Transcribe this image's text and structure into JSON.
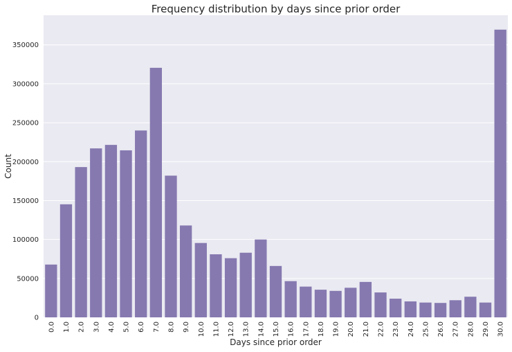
{
  "chart_data": {
    "type": "bar",
    "title": "Frequency distribution by days since prior order",
    "xlabel": "Days since prior order",
    "ylabel": "Count",
    "categories": [
      "0.0",
      "1.0",
      "2.0",
      "3.0",
      "4.0",
      "5.0",
      "6.0",
      "7.0",
      "8.0",
      "9.0",
      "10.0",
      "11.0",
      "12.0",
      "13.0",
      "14.0",
      "15.0",
      "16.0",
      "17.0",
      "18.0",
      "19.0",
      "20.0",
      "21.0",
      "22.0",
      "23.0",
      "24.0",
      "25.0",
      "26.0",
      "27.0",
      "28.0",
      "29.0",
      "30.0"
    ],
    "values": [
      67800,
      145200,
      193000,
      217000,
      221500,
      214500,
      240000,
      320500,
      182000,
      118000,
      95500,
      81000,
      76000,
      83000,
      100000,
      66000,
      46500,
      39500,
      35500,
      34000,
      38000,
      45500,
      32000,
      24000,
      20500,
      19000,
      18500,
      22000,
      26500,
      19000,
      369500
    ],
    "ylim": [
      0,
      388000
    ],
    "yticks": [
      0,
      50000,
      100000,
      150000,
      200000,
      250000,
      300000,
      350000
    ],
    "ytick_labels": [
      "0",
      "50000",
      "100000",
      "150000",
      "200000",
      "250000",
      "300000",
      "350000"
    ],
    "bar_color": "#8679b0",
    "background_color": "#eaeaf2",
    "grid": true
  }
}
